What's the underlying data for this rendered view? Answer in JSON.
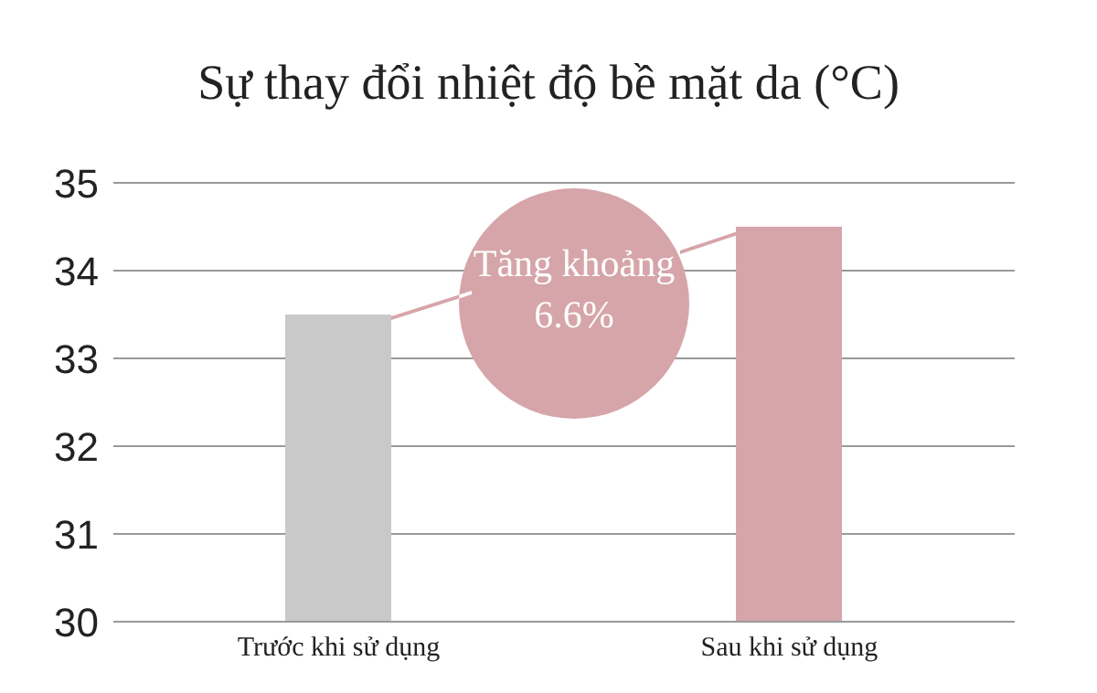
{
  "chart_data": {
    "type": "bar",
    "title": "Sự thay đổi nhiệt độ bề mặt da (°C)",
    "categories": [
      "Trước khi sử dụng",
      "Sau khi sử dụng"
    ],
    "values": [
      33.5,
      34.5
    ],
    "colors": [
      "#c9c9c9",
      "#d6a5a9"
    ],
    "ylim": [
      30,
      35
    ],
    "yticks": [
      30,
      31,
      32,
      33,
      34,
      35
    ],
    "grid": "y",
    "annotations": [
      "Tăng khoảng 6.6%"
    ]
  }
}
